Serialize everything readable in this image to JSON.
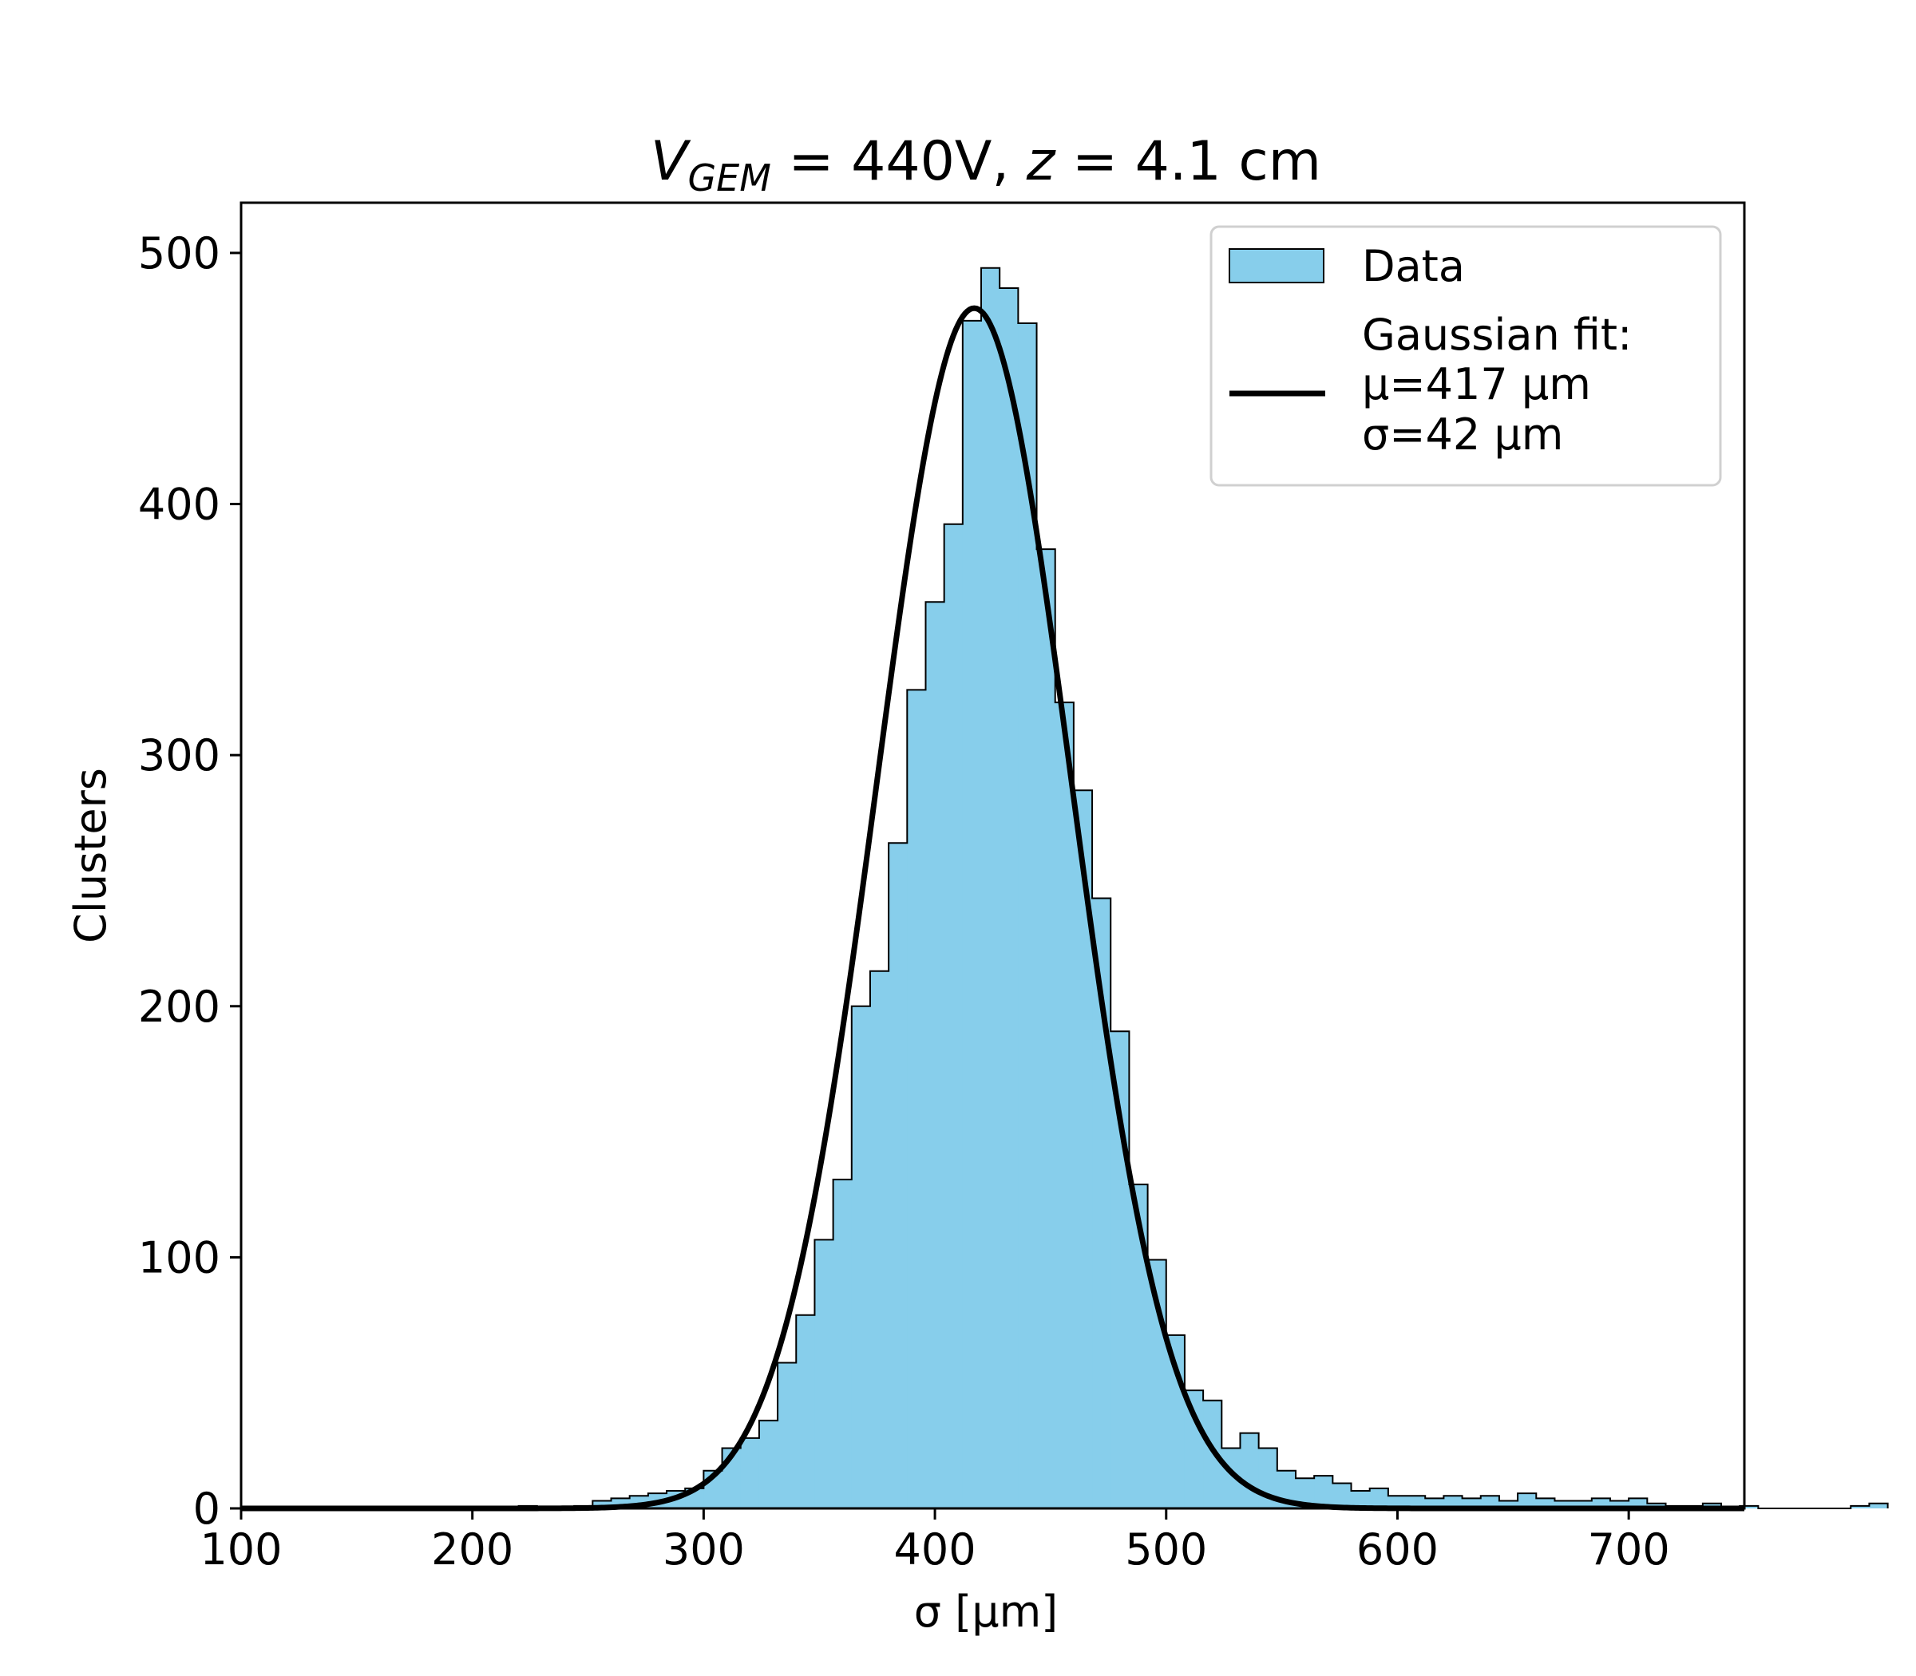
{
  "chart_data": {
    "type": "bar",
    "title_parts": {
      "v_symbol": "V",
      "v_subscript": "GEM",
      "v_value": " = 440V, ",
      "z_symbol": "z",
      "z_value": " = 4.1 cm"
    },
    "xlabel": "σ [µm]",
    "ylabel": "Clusters",
    "xlim": [
      100,
      750
    ],
    "ylim": [
      0,
      520
    ],
    "xticks": [
      100,
      200,
      300,
      400,
      500,
      600,
      700
    ],
    "yticks": [
      0,
      100,
      200,
      300,
      400,
      500
    ],
    "bin_width": 8,
    "bin_edges_start": 100,
    "hist_values": [
      0,
      0,
      0,
      0,
      0,
      0,
      0,
      0,
      0,
      0,
      0,
      0,
      0,
      0,
      0,
      1,
      0,
      0,
      1,
      3,
      4,
      5,
      6,
      7,
      8,
      15,
      24,
      28,
      35,
      58,
      77,
      107,
      131,
      200,
      214,
      265,
      326,
      361,
      392,
      473,
      494,
      486,
      472,
      382,
      321,
      286,
      243,
      190,
      129,
      99,
      69,
      47,
      43,
      24,
      30,
      24,
      15,
      12,
      13,
      10,
      7,
      8,
      5,
      5,
      4,
      5,
      4,
      5,
      3,
      6,
      4,
      3,
      3,
      4,
      3,
      4,
      2,
      1,
      1,
      2,
      0,
      1,
      0,
      0,
      0,
      0,
      0,
      1,
      2
    ],
    "series": [
      {
        "name": "Data",
        "kind": "histogram",
        "color": "#87ceeb",
        "edge_color": "#000000"
      },
      {
        "name": "Gaussian fit:",
        "kind": "gaussian",
        "mu": 417,
        "sigma": 42,
        "amplitude": 478,
        "color": "#000000"
      }
    ],
    "legend": {
      "placement": "top-right",
      "data_label": "Data",
      "fit_line1": "Gaussian fit:",
      "fit_line2": "µ=417 µm",
      "fit_line3": "σ=42 µm"
    },
    "grid": false
  }
}
